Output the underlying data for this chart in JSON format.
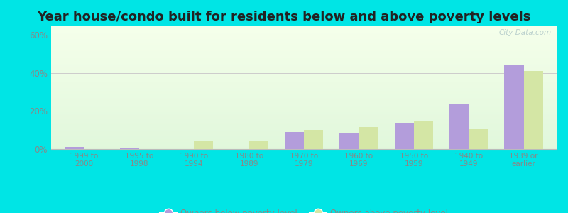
{
  "title": "Year house/condo built for residents below and above poverty levels",
  "categories": [
    "1999 to\n2000",
    "1995 to\n1998",
    "1990 to\n1994",
    "1980 to\n1989",
    "1970 to\n1979",
    "1960 to\n1969",
    "1950 to\n1959",
    "1940 to\n1949",
    "1939 or\nearlier"
  ],
  "below_poverty": [
    1.0,
    0.5,
    0.0,
    0.0,
    9.0,
    8.5,
    14.0,
    23.5,
    44.5
  ],
  "above_poverty": [
    0.0,
    0.0,
    4.0,
    4.5,
    10.0,
    11.5,
    15.0,
    11.0,
    41.0
  ],
  "below_color": "#b39ddb",
  "above_color": "#d4e6a5",
  "ylim": [
    0,
    65
  ],
  "yticks": [
    0,
    20,
    40,
    60
  ],
  "ytick_labels": [
    "0%",
    "20%",
    "40%",
    "60%"
  ],
  "outer_bg": "#00e5e5",
  "title_fontsize": 13,
  "tick_color": "#888888",
  "legend_below": "Owners below poverty level",
  "legend_above": "Owners above poverty level",
  "bar_width": 0.35
}
